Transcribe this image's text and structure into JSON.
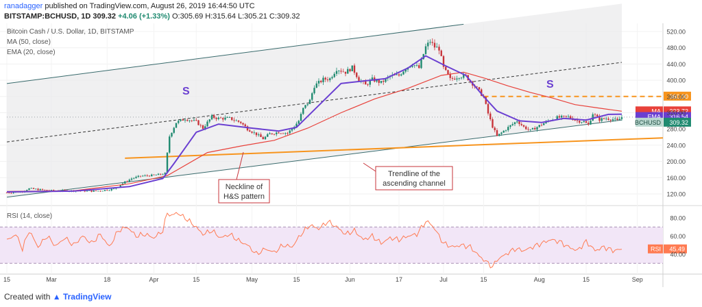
{
  "header": {
    "author": "ranadagger",
    "published": "published on TradingView.com, August 26, 2019 16:44:50 UTC",
    "symbol": "BITSTAMP:BCHUSD, 1D",
    "last": "309.32",
    "change": "+4.06 (+1.33%)",
    "ohlc": "O:305.69 H:315.64 L:305.21 C:309.32"
  },
  "colors": {
    "ma": "#e8413a",
    "ema": "#6a3fd1",
    "channel": "#37696b",
    "neckline": "#f7941d",
    "bull": "#1f8a70",
    "bear": "#c7333a",
    "rsi": "#ff7b52"
  },
  "chart_data": [
    {
      "type": "candlestick",
      "title": "Bitcoin Cash / U.S. Dollar, 1D, BITSTAMP",
      "legend": [
        "MA (50, close)",
        "EMA (20, close)"
      ],
      "x_tick_labels": [
        "15",
        "Mar",
        "18",
        "Apr",
        "15",
        "May",
        "15",
        "Jun",
        "17",
        "Jul",
        "15",
        "Aug",
        "15",
        "Sep"
      ],
      "y_tick_labels": [
        "520.00",
        "480.00",
        "440.00",
        "400.00",
        "360.00",
        "320.00",
        "280.00",
        "240.00",
        "200.00",
        "160.00",
        "120.00"
      ],
      "ylim": [
        100,
        540
      ],
      "close_series": [
        [
          0,
          123
        ],
        [
          6,
          125
        ],
        [
          10,
          133
        ],
        [
          14,
          131
        ],
        [
          20,
          128
        ],
        [
          30,
          128
        ],
        [
          40,
          127
        ],
        [
          48,
          132
        ],
        [
          52,
          146
        ],
        [
          56,
          158
        ],
        [
          60,
          164
        ],
        [
          66,
          166
        ],
        [
          71,
          170
        ],
        [
          72,
          220
        ],
        [
          73,
          262
        ],
        [
          76,
          296
        ],
        [
          80,
          305
        ],
        [
          85,
          298
        ],
        [
          88,
          282
        ],
        [
          92,
          310
        ],
        [
          95,
          306
        ],
        [
          100,
          306
        ],
        [
          105,
          296
        ],
        [
          108,
          280
        ],
        [
          112,
          267
        ],
        [
          115,
          256
        ],
        [
          118,
          268
        ],
        [
          122,
          272
        ],
        [
          126,
          270
        ],
        [
          128,
          280
        ],
        [
          131,
          300
        ],
        [
          133,
          330
        ],
        [
          136,
          350
        ],
        [
          138,
          386
        ],
        [
          142,
          402
        ],
        [
          145,
          404
        ],
        [
          148,
          428
        ],
        [
          152,
          420
        ],
        [
          155,
          431
        ],
        [
          158,
          402
        ],
        [
          161,
          388
        ],
        [
          164,
          402
        ],
        [
          168,
          394
        ],
        [
          172,
          410
        ],
        [
          176,
          412
        ],
        [
          179,
          430
        ],
        [
          182,
          440
        ],
        [
          185,
          430
        ],
        [
          188,
          482
        ],
        [
          190,
          496
        ],
        [
          192,
          482
        ],
        [
          194,
          478
        ],
        [
          196,
          430
        ],
        [
          199,
          402
        ],
        [
          203,
          410
        ],
        [
          206,
          410
        ],
        [
          209,
          392
        ],
        [
          212,
          373
        ],
        [
          214,
          358
        ],
        [
          216,
          318
        ],
        [
          218,
          286
        ],
        [
          220,
          262
        ],
        [
          223,
          275
        ],
        [
          226,
          288
        ],
        [
          229,
          300
        ],
        [
          232,
          285
        ],
        [
          235,
          276
        ],
        [
          239,
          288
        ],
        [
          243,
          300
        ],
        [
          247,
          308
        ],
        [
          252,
          310
        ],
        [
          256,
          300
        ],
        [
          259,
          298
        ],
        [
          261,
          290
        ],
        [
          263,
          318
        ],
        [
          266,
          303
        ],
        [
          269,
          306
        ],
        [
          272,
          304
        ],
        [
          274,
          300
        ],
        [
          276,
          309
        ]
      ],
      "ma_50": [
        [
          0,
          126
        ],
        [
          30,
          128
        ],
        [
          55,
          145
        ],
        [
          72,
          165
        ],
        [
          90,
          222
        ],
        [
          105,
          238
        ],
        [
          120,
          252
        ],
        [
          135,
          282
        ],
        [
          150,
          320
        ],
        [
          165,
          354
        ],
        [
          180,
          380
        ],
        [
          195,
          412
        ],
        [
          205,
          420
        ],
        [
          215,
          404
        ],
        [
          225,
          386
        ],
        [
          235,
          370
        ],
        [
          245,
          356
        ],
        [
          255,
          340
        ],
        [
          265,
          332
        ],
        [
          276,
          323.72
        ]
      ],
      "ema_20": [
        [
          0,
          125
        ],
        [
          30,
          127
        ],
        [
          55,
          138
        ],
        [
          70,
          158
        ],
        [
          75,
          195
        ],
        [
          85,
          272
        ],
        [
          95,
          292
        ],
        [
          110,
          282
        ],
        [
          122,
          275
        ],
        [
          130,
          284
        ],
        [
          140,
          338
        ],
        [
          150,
          392
        ],
        [
          160,
          398
        ],
        [
          170,
          404
        ],
        [
          180,
          430
        ],
        [
          188,
          460
        ],
        [
          196,
          438
        ],
        [
          206,
          412
        ],
        [
          214,
          360
        ],
        [
          220,
          324
        ],
        [
          230,
          300
        ],
        [
          240,
          296
        ],
        [
          250,
          306
        ],
        [
          260,
          302
        ],
        [
          270,
          316
        ],
        [
          276,
          316.54
        ]
      ],
      "ascending_channel": {
        "upper": [
          [
            0,
            392
          ],
          [
            205,
            538
          ]
        ],
        "lower": [
          [
            0,
            112
          ],
          [
            276,
            302
          ]
        ],
        "middle": [
          [
            0,
            248
          ],
          [
            276,
            444
          ]
        ]
      },
      "neckline": [
        [
          53,
          208
        ],
        [
          276,
          258
        ]
      ],
      "resistance": 360.0,
      "price_labels": [
        {
          "name": "MA",
          "value": "323.72"
        },
        {
          "name": "EMA",
          "value": "316.54"
        },
        {
          "name": "BCHUSD",
          "value": "309.32"
        },
        {
          "name": "",
          "value": "360.00"
        }
      ],
      "annotations": [
        {
          "text": "S",
          "at": [
            78,
            435
          ]
        },
        {
          "text": "S",
          "at": [
            236,
            350
          ]
        },
        {
          "text": "Neckline of H&S pattern"
        },
        {
          "text": "Trendline of the ascending channel"
        }
      ]
    },
    {
      "type": "line",
      "title": "RSI (14, close)",
      "y_tick_labels": [
        "80.00",
        "60.00",
        "40.00"
      ],
      "ylim": [
        20,
        90
      ],
      "bands": [
        30,
        70
      ],
      "last_label": {
        "name": "RSI",
        "value": "45.49"
      },
      "values": [
        [
          0,
          55
        ],
        [
          4,
          62
        ],
        [
          7,
          46
        ],
        [
          10,
          66
        ],
        [
          14,
          48
        ],
        [
          18,
          60
        ],
        [
          22,
          49
        ],
        [
          26,
          58
        ],
        [
          30,
          50
        ],
        [
          34,
          60
        ],
        [
          38,
          52
        ],
        [
          42,
          62
        ],
        [
          46,
          48
        ],
        [
          50,
          66
        ],
        [
          54,
          70
        ],
        [
          58,
          60
        ],
        [
          62,
          62
        ],
        [
          66,
          58
        ],
        [
          70,
          66
        ],
        [
          72,
          86
        ],
        [
          74,
          82
        ],
        [
          76,
          86
        ],
        [
          80,
          80
        ],
        [
          84,
          72
        ],
        [
          88,
          62
        ],
        [
          92,
          66
        ],
        [
          96,
          58
        ],
        [
          100,
          62
        ],
        [
          104,
          55
        ],
        [
          108,
          50
        ],
        [
          112,
          40
        ],
        [
          116,
          46
        ],
        [
          120,
          42
        ],
        [
          124,
          50
        ],
        [
          128,
          48
        ],
        [
          132,
          62
        ],
        [
          136,
          72
        ],
        [
          140,
          68
        ],
        [
          144,
          76
        ],
        [
          148,
          70
        ],
        [
          152,
          62
        ],
        [
          156,
          66
        ],
        [
          160,
          56
        ],
        [
          164,
          60
        ],
        [
          168,
          52
        ],
        [
          172,
          58
        ],
        [
          176,
          56
        ],
        [
          180,
          60
        ],
        [
          184,
          62
        ],
        [
          188,
          76
        ],
        [
          190,
          74
        ],
        [
          192,
          68
        ],
        [
          196,
          52
        ],
        [
          200,
          48
        ],
        [
          204,
          50
        ],
        [
          208,
          48
        ],
        [
          212,
          38
        ],
        [
          216,
          30
        ],
        [
          218,
          26
        ],
        [
          220,
          34
        ],
        [
          224,
          40
        ],
        [
          228,
          46
        ],
        [
          232,
          44
        ],
        [
          236,
          48
        ],
        [
          240,
          52
        ],
        [
          244,
          56
        ],
        [
          248,
          54
        ],
        [
          252,
          48
        ],
        [
          256,
          44
        ],
        [
          260,
          54
        ],
        [
          264,
          44
        ],
        [
          268,
          48
        ],
        [
          272,
          44
        ],
        [
          276,
          45.49
        ]
      ]
    }
  ],
  "text": {
    "title": "Bitcoin Cash / U.S. Dollar, 1D, BITSTAMP",
    "ma_legend": "MA (50, close)",
    "ema_legend": "EMA (20, close)",
    "s1": "S",
    "s2": "S",
    "neck_line1": "Neckline of",
    "neck_line2": "H&S pattern",
    "trend_line1": "Trendline of the",
    "trend_line2": "ascending channel",
    "rsi_title": "RSI (14, close)",
    "footer_prefix": "Created with",
    "footer_brand": "TradingView"
  }
}
